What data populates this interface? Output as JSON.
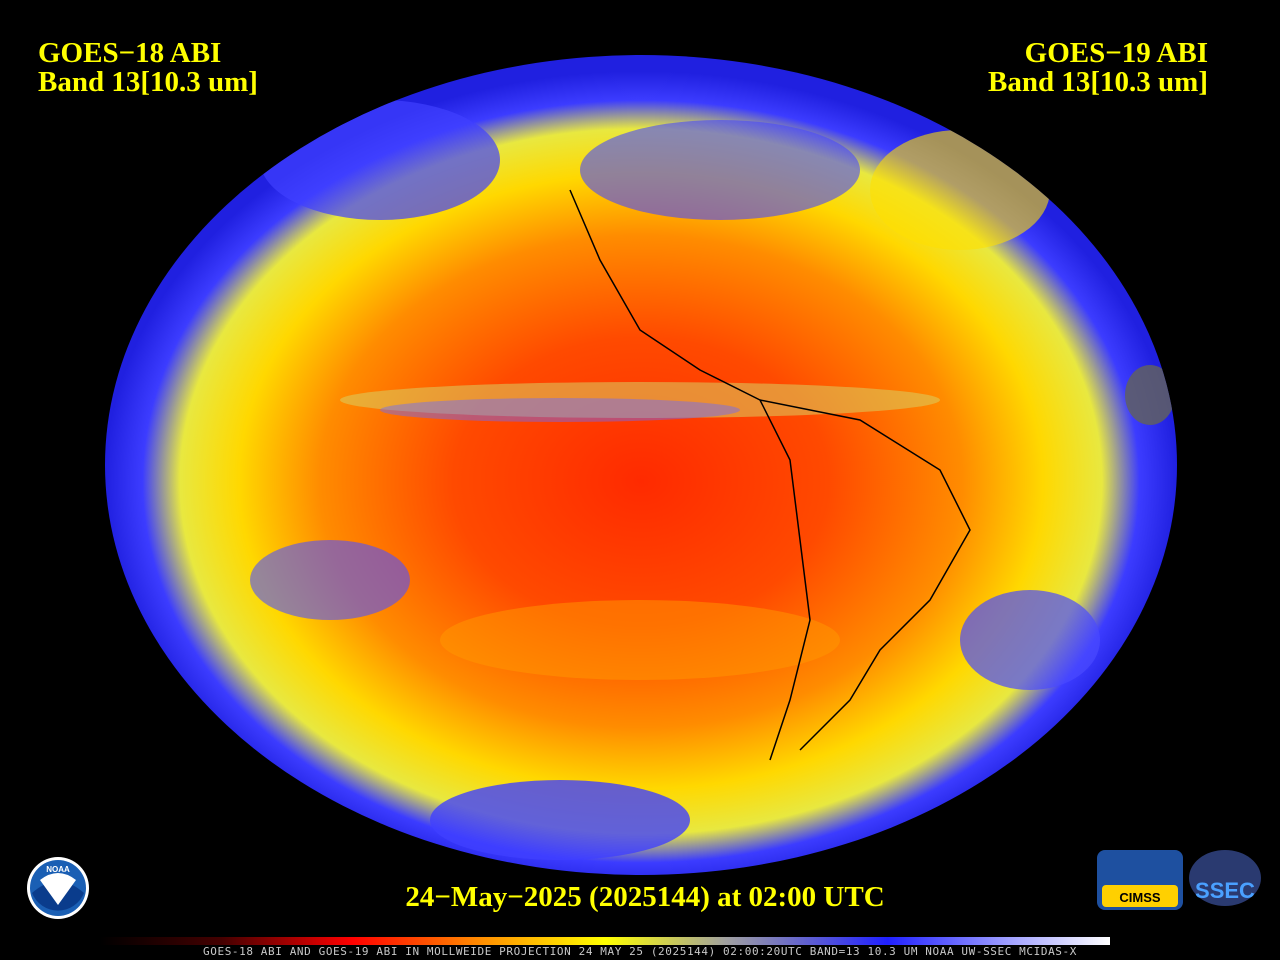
{
  "header": {
    "left": {
      "line1": "GOES−18 ABI",
      "line2": "Band 13[10.3 um]"
    },
    "right": {
      "line1": "GOES−19 ABI",
      "line2": "Band 13[10.3 um]"
    }
  },
  "timestamp": "24−May−2025 (2025144) at 02:00 UTC",
  "footer": "GOES-18 ABI AND GOES-19 ABI IN MOLLWEIDE PROJECTION 24 MAY 25 (2025144) 02:00:20UTC BAND=13 10.3 UM NOAA UW-SSEC MCIDAS-X",
  "logos": {
    "noaa": "NOAA",
    "cimss": "CIMSS",
    "ssec": "SSEC"
  }
}
